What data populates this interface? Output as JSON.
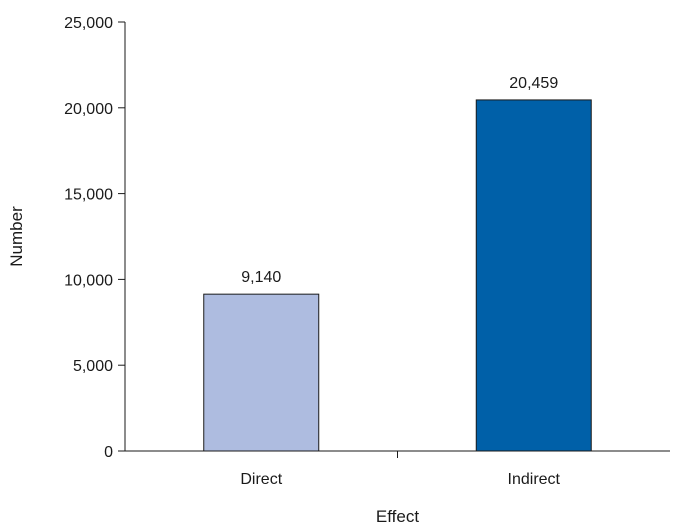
{
  "chart_data": {
    "type": "bar",
    "title": "",
    "xlabel": "Effect",
    "ylabel": "Number",
    "categories": [
      "Direct",
      "Indirect"
    ],
    "values": [
      9140,
      20459
    ],
    "value_labels": [
      "9,140",
      "20,459"
    ],
    "bar_colors": [
      "#aebce0",
      "#0060a8"
    ],
    "ylim": [
      0,
      25000
    ],
    "yticks": [
      0,
      5000,
      10000,
      15000,
      20000,
      25000
    ],
    "ytick_labels": [
      "0",
      "5,000",
      "10,000",
      "15,000",
      "20,000",
      "25,000"
    ],
    "grid": false,
    "legend": "none"
  }
}
